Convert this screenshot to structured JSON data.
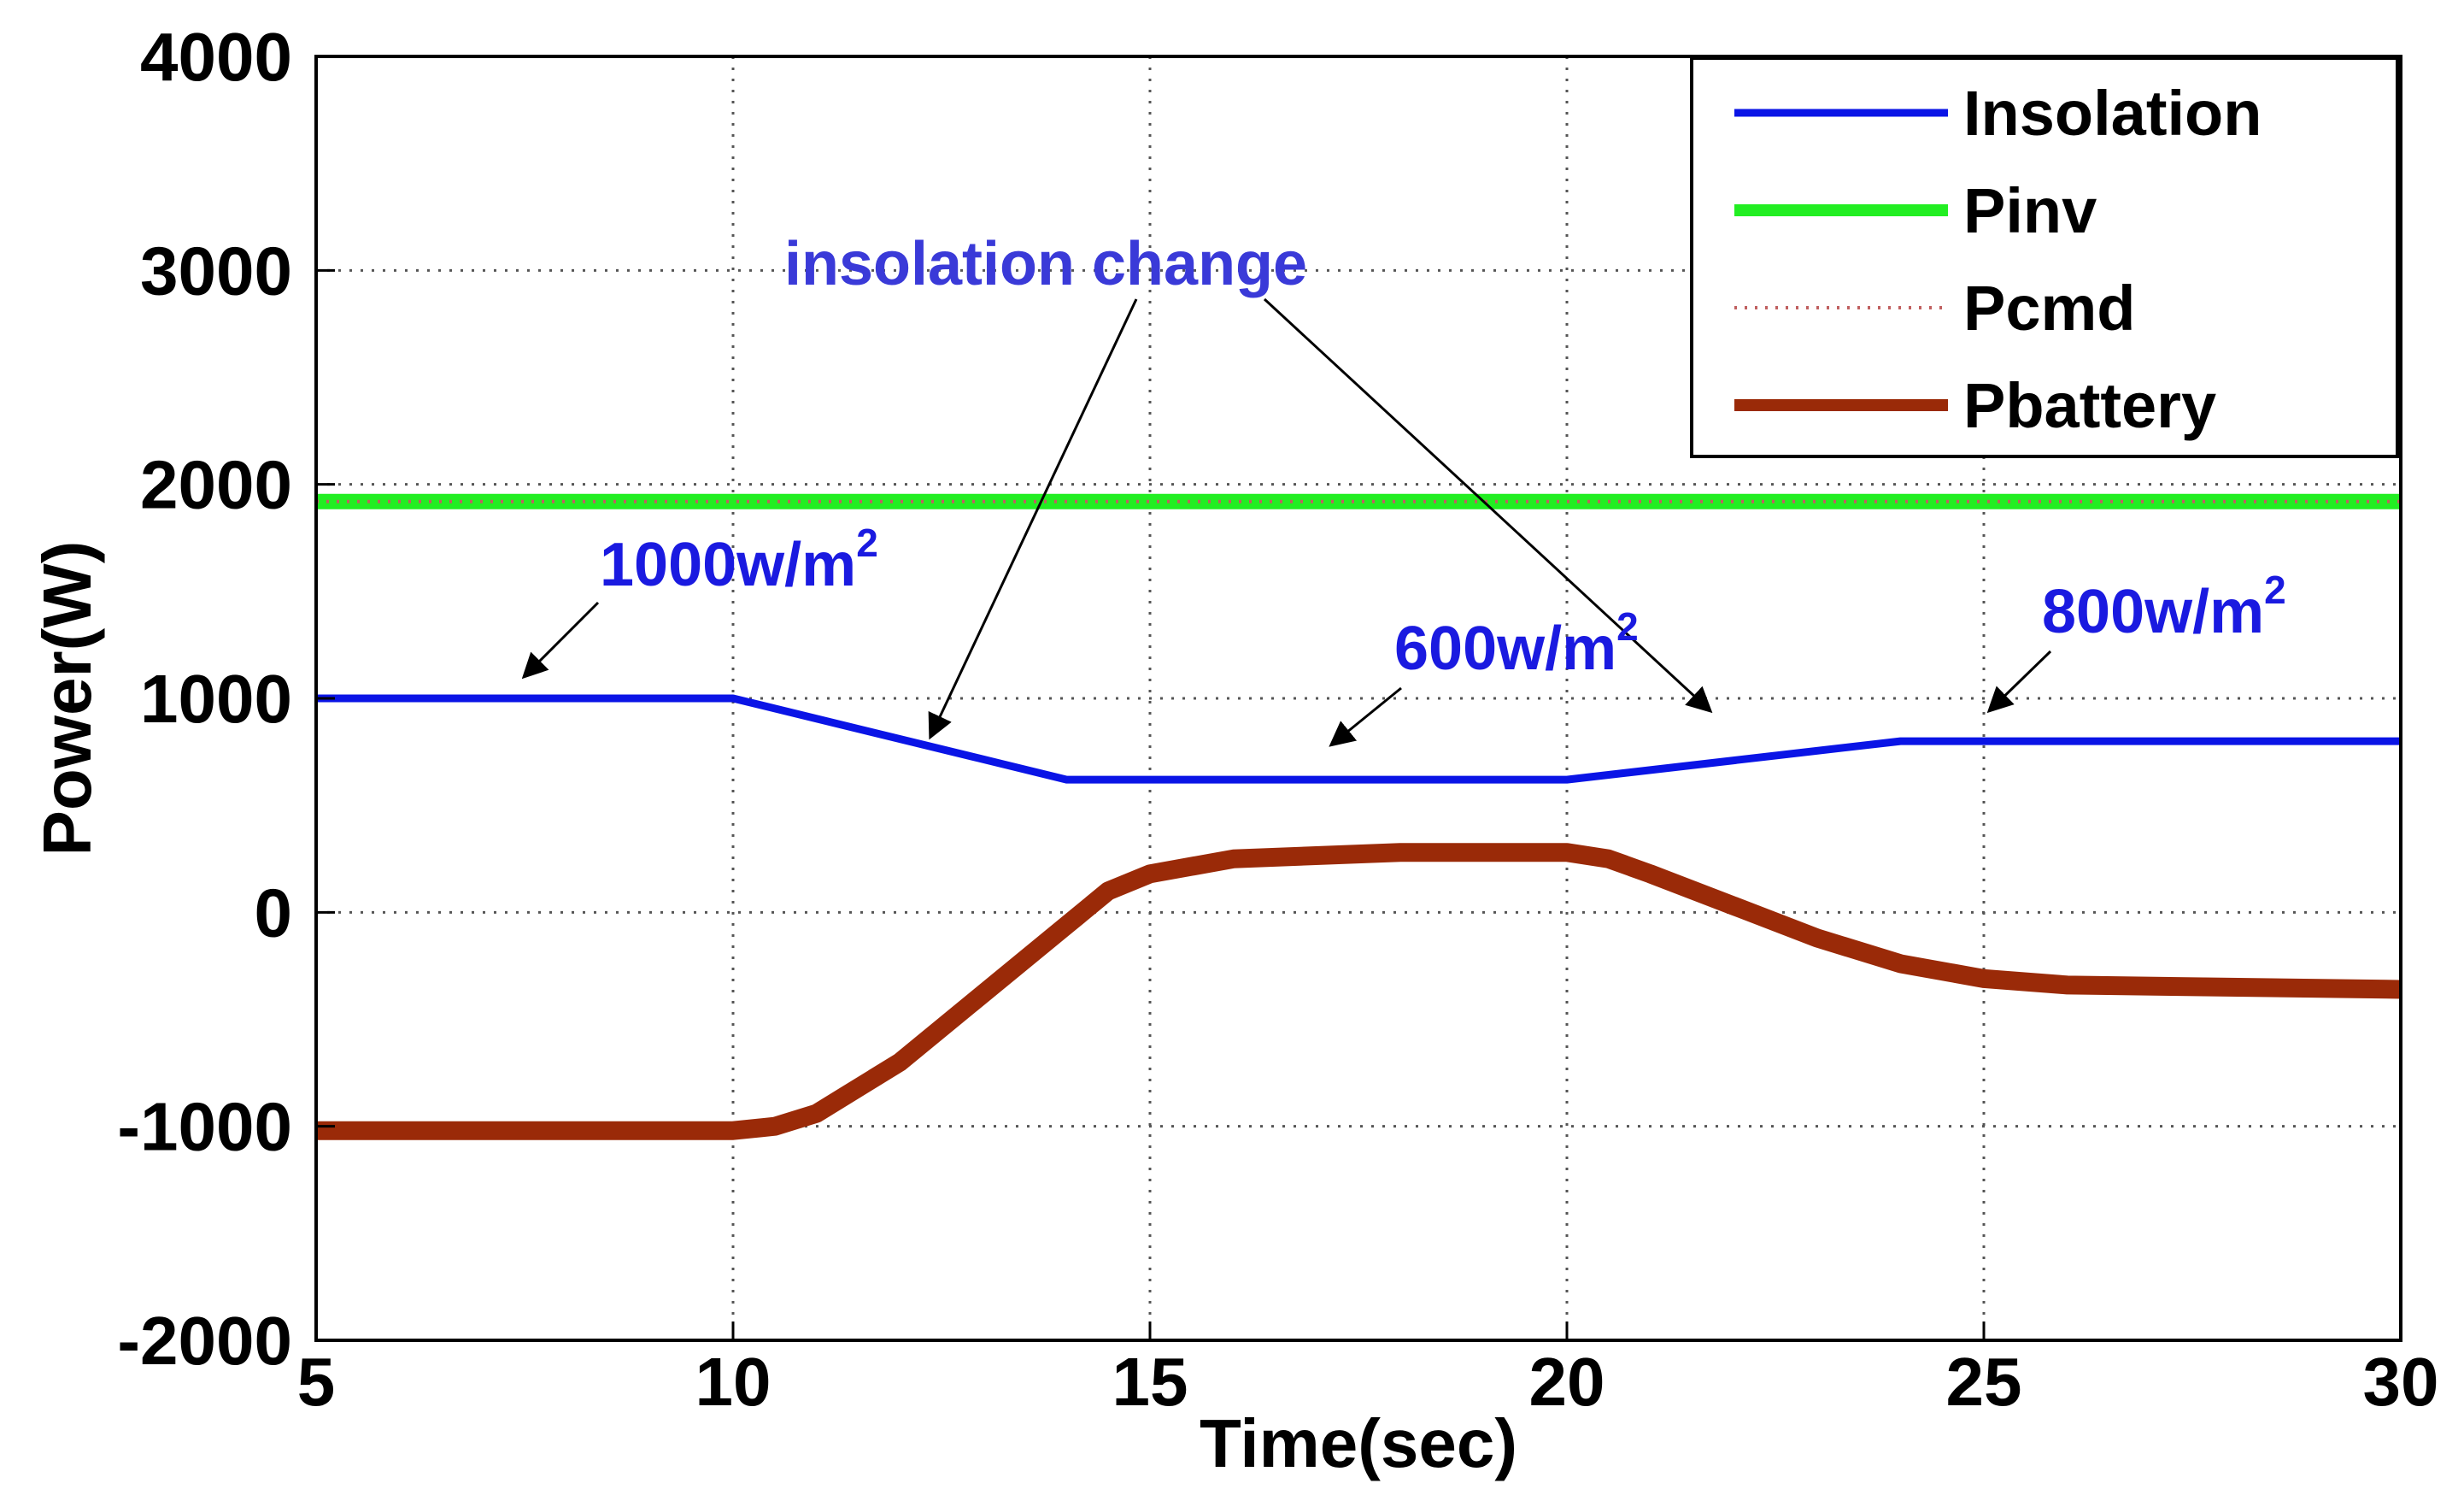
{
  "chart_data": {
    "type": "line",
    "title": "",
    "xlabel": "Time(sec)",
    "ylabel": "Power(W)",
    "xlim": [
      5,
      30
    ],
    "ylim": [
      -2000,
      4000
    ],
    "xticks": [
      5,
      10,
      15,
      20,
      25,
      30
    ],
    "yticks": [
      -2000,
      -1000,
      0,
      1000,
      2000,
      3000,
      4000
    ],
    "xtick_labels": [
      "5",
      "10",
      "15",
      "20",
      "25",
      "30"
    ],
    "ytick_labels": [
      "-2000",
      "-1000",
      "0",
      "1000",
      "2000",
      "3000",
      "4000"
    ],
    "grid": true,
    "legend_position": "top-right",
    "series": [
      {
        "name": "Insolation",
        "color": "#0a14e6",
        "style": "solid",
        "x": [
          5,
          10,
          14,
          20,
          24,
          30
        ],
        "y": [
          1000,
          1000,
          620,
          620,
          800,
          800
        ]
      },
      {
        "name": "Pinv",
        "color": "#22ee22",
        "style": "solid",
        "x": [
          5,
          30
        ],
        "y": [
          1920,
          1920
        ]
      },
      {
        "name": "Pcmd",
        "color": "#c06060",
        "style": "dotted",
        "x": [
          5,
          30
        ],
        "y": [
          1920,
          1920
        ]
      },
      {
        "name": "Pbattery",
        "color": "#9a2a08",
        "style": "solid",
        "x": [
          5,
          10,
          10.5,
          11,
          12,
          13,
          14,
          14.5,
          15,
          16,
          18,
          20,
          20.5,
          21,
          22,
          23,
          24,
          25,
          26,
          30
        ],
        "y": [
          -1020,
          -1020,
          -1000,
          -940,
          -700,
          -380,
          -60,
          100,
          180,
          250,
          280,
          280,
          250,
          180,
          30,
          -120,
          -240,
          -310,
          -340,
          -360
        ]
      }
    ],
    "annotations": [
      {
        "text": "insolation change",
        "color": "#3a3ad8"
      },
      {
        "text": "1000w/m",
        "sup": "2",
        "color": "#1a1ae0"
      },
      {
        "text": "600w/m",
        "sup": "2",
        "color": "#1a1ae0"
      },
      {
        "text": "800w/m",
        "sup": "2",
        "color": "#1a1ae0"
      }
    ]
  }
}
